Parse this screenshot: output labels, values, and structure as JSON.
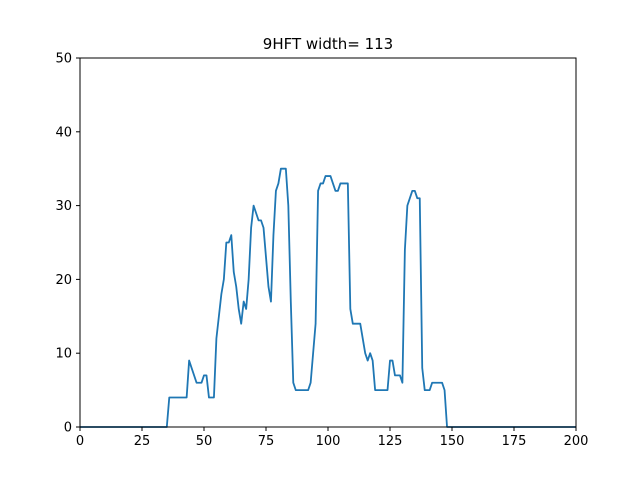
{
  "chart_data": {
    "type": "line",
    "title": "9HFT width= 113",
    "xlabel": "",
    "ylabel": "",
    "xlim": [
      0,
      200
    ],
    "ylim": [
      0,
      50
    ],
    "xticks": [
      0,
      25,
      50,
      75,
      100,
      125,
      150,
      175,
      200
    ],
    "yticks": [
      0,
      10,
      20,
      30,
      40,
      50
    ],
    "grid": false,
    "series": [
      {
        "color": "#1f77b4",
        "x": [
          0,
          35,
          36,
          43,
          44,
          47,
          48,
          49,
          50,
          51,
          52,
          54,
          55,
          56,
          57,
          58,
          59,
          60,
          61,
          62,
          63,
          64,
          65,
          66,
          67,
          68,
          69,
          70,
          71,
          72,
          73,
          74,
          75,
          76,
          77,
          78,
          79,
          80,
          81,
          82,
          83,
          84,
          85,
          86,
          87,
          88,
          92,
          93,
          94,
          95,
          96,
          97,
          98,
          99,
          100,
          101,
          102,
          103,
          104,
          105,
          106,
          107,
          108,
          109,
          110,
          111,
          112,
          113,
          114,
          115,
          116,
          117,
          118,
          119,
          120,
          121,
          122,
          124,
          125,
          126,
          127,
          128,
          129,
          130,
          131,
          132,
          133,
          134,
          135,
          136,
          137,
          138,
          139,
          140,
          141,
          142,
          143,
          144,
          145,
          146,
          147,
          148,
          200
        ],
        "y": [
          0,
          0,
          4,
          4,
          9,
          6,
          6,
          6,
          7,
          7,
          4,
          4,
          12,
          15,
          18,
          20,
          25,
          25,
          26,
          21,
          19,
          16,
          14,
          17,
          16,
          20,
          27,
          30,
          29,
          28,
          28,
          27,
          23,
          19,
          17,
          26,
          32,
          33,
          35,
          35,
          35,
          30,
          17,
          6,
          5,
          5,
          5,
          6,
          10,
          14,
          32,
          33,
          33,
          34,
          34,
          34,
          33,
          32,
          32,
          33,
          33,
          33,
          33,
          16,
          14,
          14,
          14,
          14,
          12,
          10,
          9,
          10,
          9,
          5,
          5,
          5,
          5,
          5,
          9,
          9,
          7,
          7,
          7,
          6,
          24,
          30,
          31,
          32,
          32,
          31,
          31,
          8,
          5,
          5,
          5,
          6,
          6,
          6,
          6,
          6,
          5,
          0,
          0
        ]
      }
    ]
  }
}
